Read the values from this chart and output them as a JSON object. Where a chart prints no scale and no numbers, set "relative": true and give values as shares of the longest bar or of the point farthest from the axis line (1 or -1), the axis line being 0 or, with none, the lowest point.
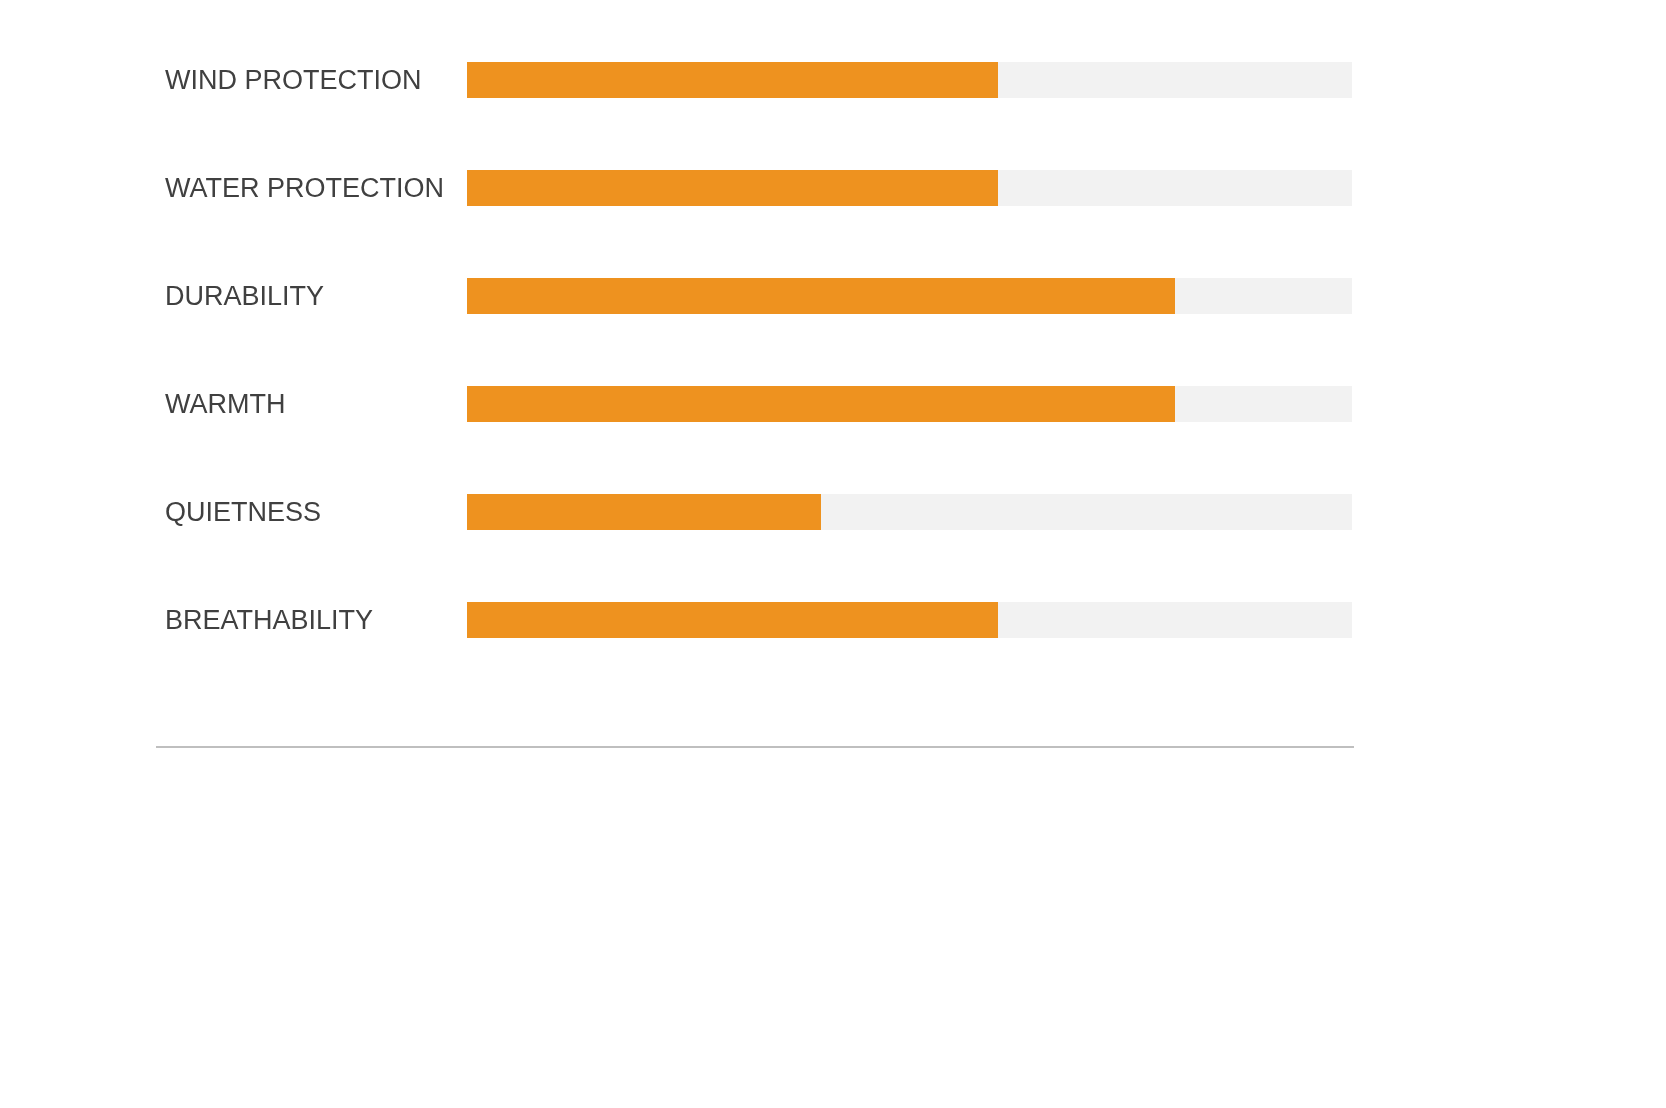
{
  "chart_data": {
    "type": "bar",
    "orientation": "horizontal",
    "stacked": true,
    "relative": true,
    "categories": [
      "WIND PROTECTION",
      "WATER PROTECTION",
      "DURABILITY",
      "WARMTH",
      "QUIETNESS",
      "BREATHABILITY"
    ],
    "series": [
      {
        "color": "#ee921f",
        "values": [
          0.6,
          0.6,
          0.8,
          0.8,
          0.4,
          0.6
        ]
      },
      {
        "color": "#f2f2f2",
        "values": [
          0.4,
          0.4,
          0.2,
          0.2,
          0.6,
          0.4
        ]
      }
    ]
  }
}
